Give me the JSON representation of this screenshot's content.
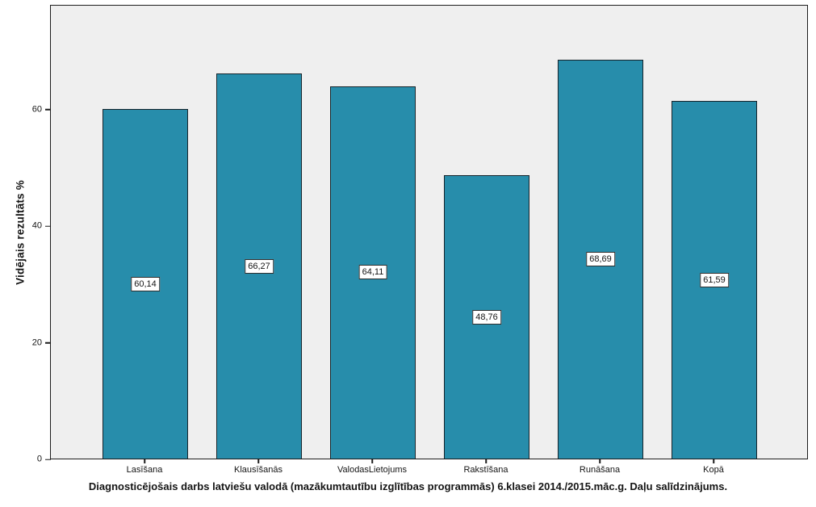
{
  "chart_data": {
    "type": "bar",
    "title": "Diagnosticējošais darbs latviešu valodā (mazākumtautību izglītības programmās) 6.klasei 2014./2015.māc.g. Daļu salīdzinājums.",
    "ylabel": "Vidējais rezultāts %",
    "xlabel": "",
    "categories": [
      "Lasīšana",
      "Klausīšanās",
      "ValodasLietojums",
      "Rakstīšana",
      "Runāšana",
      "Kopā"
    ],
    "values": [
      60.14,
      66.27,
      64.11,
      48.76,
      68.69,
      61.59
    ],
    "value_labels": [
      "60,14",
      "66,27",
      "64,11",
      "48,76",
      "68,69",
      "61,59"
    ],
    "ylim": [
      0,
      78
    ],
    "yticks": [
      0,
      20,
      40,
      60
    ],
    "grid": false,
    "legend": "none",
    "bar_color": "#278dab",
    "bar_border_color": "#17242b",
    "plot_bg": "#efefef",
    "axis_color": "#1c1c1c",
    "value_box_bg": "#ffffff",
    "value_box_border": "#2e2e2e"
  }
}
